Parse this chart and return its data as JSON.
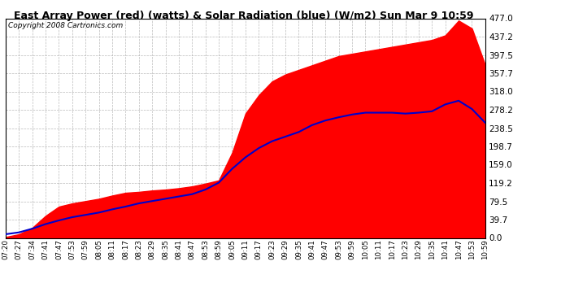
{
  "title": "East Array Power (red) (watts) & Solar Radiation (blue) (W/m2) Sun Mar 9 10:59",
  "copyright": "Copyright 2008 Cartronics.com",
  "background_color": "#ffffff",
  "plot_bg_color": "#ffffff",
  "grid_color": "#aaaaaa",
  "y_ticks": [
    0.0,
    39.7,
    79.5,
    119.2,
    159.0,
    198.7,
    238.5,
    278.2,
    318.0,
    357.7,
    397.5,
    437.2,
    477.0
  ],
  "y_max": 477.0,
  "y_min": 0.0,
  "red_fill_color": "#ff0000",
  "blue_line_color": "#0000cc",
  "time_labels": [
    "07:20",
    "07:27",
    "07:34",
    "07:41",
    "07:47",
    "07:53",
    "07:59",
    "08:05",
    "08:11",
    "08:17",
    "08:23",
    "08:29",
    "08:35",
    "08:41",
    "08:47",
    "08:53",
    "08:59",
    "09:05",
    "09:11",
    "09:17",
    "09:23",
    "09:29",
    "09:35",
    "09:41",
    "09:47",
    "09:53",
    "09:59",
    "10:05",
    "10:11",
    "10:17",
    "10:23",
    "10:29",
    "10:35",
    "10:41",
    "10:47",
    "10:53",
    "10:59"
  ],
  "red_values": [
    2,
    8,
    22,
    48,
    68,
    75,
    80,
    85,
    92,
    98,
    100,
    103,
    105,
    108,
    112,
    118,
    125,
    185,
    270,
    310,
    340,
    355,
    365,
    375,
    385,
    395,
    400,
    405,
    410,
    415,
    420,
    425,
    430,
    440,
    472,
    455,
    375
  ],
  "blue_values": [
    8,
    12,
    20,
    30,
    38,
    45,
    50,
    55,
    62,
    68,
    75,
    80,
    85,
    90,
    95,
    105,
    120,
    150,
    175,
    195,
    210,
    220,
    230,
    245,
    255,
    262,
    268,
    272,
    272,
    272,
    270,
    272,
    275,
    290,
    298,
    280,
    250
  ]
}
